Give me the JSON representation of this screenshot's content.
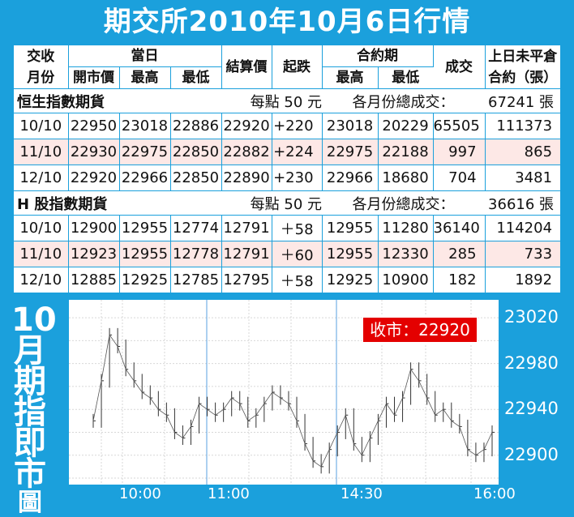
{
  "title": "期交所2010年10月6日行情",
  "headers": {
    "month": "交收\n月份",
    "today": "當日",
    "open": "開市價",
    "high": "最高",
    "low": "最低",
    "settle": "結算價",
    "change": "起跌",
    "contract": "合約期",
    "c_high": "最高",
    "c_low": "最低",
    "volume": "成交",
    "oi": "上日未平倉\n合約（張）"
  },
  "sections": [
    {
      "name": "恒生指數期貨",
      "per_point": "每點 50 元",
      "total_label": "各月份總成交：",
      "total_value": "67241 張",
      "rows": [
        {
          "month": "10/10",
          "open": "22950",
          "high": "23018",
          "low": "22886",
          "settle": "22920",
          "change": "+220",
          "c_high": "23018",
          "c_low": "20229",
          "volume": "65505",
          "oi": "111373"
        },
        {
          "month": "11/10",
          "open": "22930",
          "high": "22975",
          "low": "22850",
          "settle": "22882",
          "change": "+224",
          "c_high": "22975",
          "c_low": "22188",
          "volume": "997",
          "oi": "865"
        },
        {
          "month": "12/10",
          "open": "22920",
          "high": "22966",
          "low": "22850",
          "settle": "22890",
          "change": "+230",
          "c_high": "22966",
          "c_low": "18680",
          "volume": "704",
          "oi": "3481"
        }
      ]
    },
    {
      "name": "H 股指數期貨",
      "per_point": "每點 50 元",
      "total_label": "各月份總成交：",
      "total_value": "36616 張",
      "rows": [
        {
          "month": "10/10",
          "open": "12900",
          "high": "12955",
          "low": "12774",
          "settle": "12791",
          "change": "＋58",
          "c_high": "12955",
          "c_low": "11280",
          "volume": "36140",
          "oi": "114204"
        },
        {
          "month": "11/10",
          "open": "12923",
          "high": "12955",
          "low": "12778",
          "settle": "12791",
          "change": "＋60",
          "c_high": "12955",
          "c_low": "12330",
          "volume": "285",
          "oi": "733"
        },
        {
          "month": "12/10",
          "open": "12885",
          "high": "12925",
          "low": "12785",
          "settle": "12795",
          "change": "＋58",
          "c_high": "12925",
          "c_low": "10900",
          "volume": "182",
          "oi": "1892"
        }
      ]
    }
  ],
  "chart_label": [
    "10",
    "月",
    "期",
    "指",
    "即",
    "市",
    "圖"
  ],
  "close_badge": "收市：22920",
  "chart_data": {
    "type": "line",
    "title": "10月期指即市圖",
    "xlabel": "",
    "ylabel": "",
    "ylim": [
      22880,
      23030
    ],
    "yticks": [
      23020,
      22980,
      22940,
      22900
    ],
    "xticks": [
      "10:00",
      "11:00",
      "14:30",
      "16:00"
    ],
    "grid": true,
    "series": [
      {
        "name": "",
        "x": [
          "09:45",
          "09:50",
          "09:55",
          "10:00",
          "10:05",
          "10:10",
          "10:15",
          "10:20",
          "10:25",
          "10:30",
          "10:35",
          "10:40",
          "10:45",
          "10:50",
          "10:55",
          "11:00",
          "11:05",
          "11:10",
          "11:15",
          "11:20",
          "11:25",
          "11:30",
          "11:35",
          "11:40",
          "11:45",
          "11:50",
          "11:55",
          "12:00",
          "14:30",
          "14:35",
          "14:40",
          "14:45",
          "14:50",
          "14:55",
          "15:00",
          "15:05",
          "15:10",
          "15:15",
          "15:20",
          "15:25",
          "15:30",
          "15:35",
          "15:40",
          "15:45",
          "15:50",
          "15:55",
          "16:00",
          "16:05",
          "16:10",
          "16:15"
        ],
        "values": [
          22930,
          22965,
          23005,
          22995,
          22975,
          22965,
          22955,
          22950,
          22940,
          22935,
          22920,
          22915,
          22925,
          22945,
          22940,
          22935,
          22940,
          22950,
          22945,
          22930,
          22935,
          22945,
          22955,
          22950,
          22945,
          22930,
          22910,
          22895,
          22890,
          22905,
          22920,
          22935,
          22910,
          22900,
          22915,
          22930,
          22945,
          22935,
          22950,
          22975,
          22965,
          22950,
          22935,
          22940,
          22930,
          22925,
          22905,
          22900,
          22905,
          22920
        ]
      }
    ]
  }
}
